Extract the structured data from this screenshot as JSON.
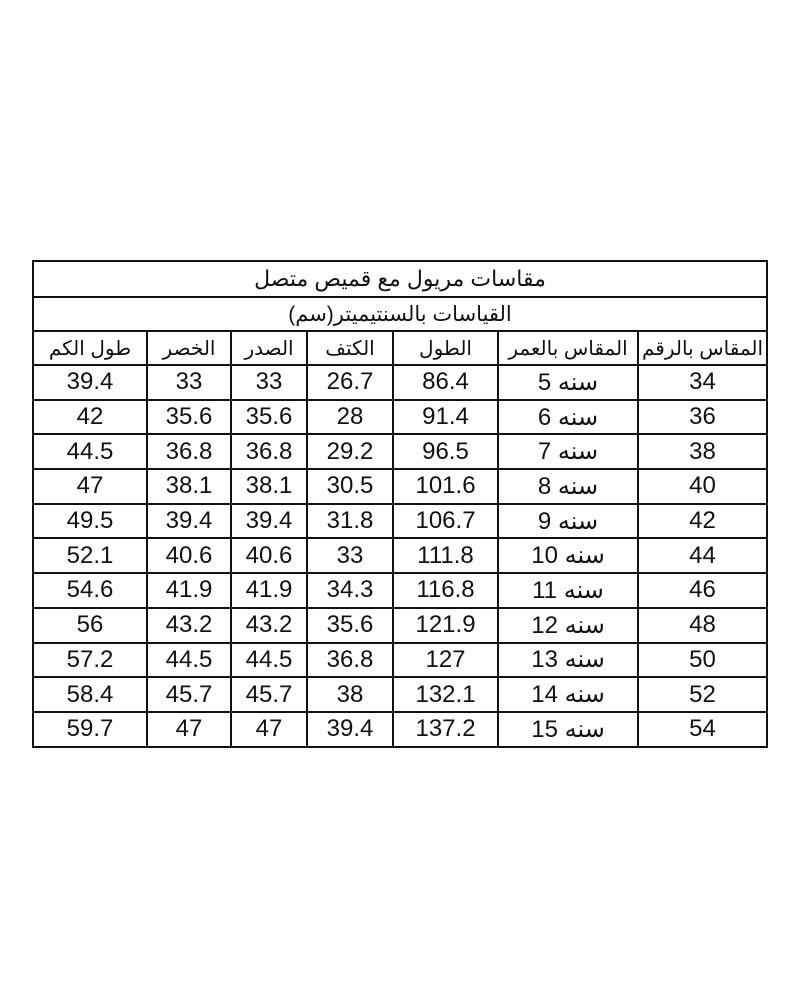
{
  "table": {
    "title": "مقاسات مريول مع قميص متصل",
    "subtitle": "القياسات بالسنتيميتر(سم)",
    "headers": [
      "المقاس بالرقم",
      "المقاس بالعمر",
      "الطول",
      "الكتف",
      "الصدر",
      "الخصر",
      "طول الكم"
    ],
    "rows": [
      [
        34,
        "سنه 5",
        86.4,
        26.7,
        33,
        33,
        39.4
      ],
      [
        36,
        "سنه 6",
        91.4,
        28,
        35.6,
        35.6,
        42
      ],
      [
        38,
        "سنه 7",
        96.5,
        29.2,
        36.8,
        36.8,
        44.5
      ],
      [
        40,
        "سنه 8",
        101.6,
        30.5,
        38.1,
        38.1,
        47
      ],
      [
        42,
        "سنه 9",
        106.7,
        31.8,
        39.4,
        39.4,
        49.5
      ],
      [
        44,
        "سنه 10",
        111.8,
        33,
        40.6,
        40.6,
        52.1
      ],
      [
        46,
        "سنه 11",
        116.8,
        34.3,
        41.9,
        41.9,
        54.6
      ],
      [
        48,
        "سنه 12",
        121.9,
        35.6,
        43.2,
        43.2,
        56
      ],
      [
        50,
        "سنه 13",
        127,
        36.8,
        44.5,
        44.5,
        57.2
      ],
      [
        52,
        "سنه 14",
        132.1,
        38,
        45.7,
        45.7,
        58.4
      ],
      [
        54,
        "سنه 15",
        137.2,
        39.4,
        47,
        47,
        59.7
      ]
    ]
  }
}
